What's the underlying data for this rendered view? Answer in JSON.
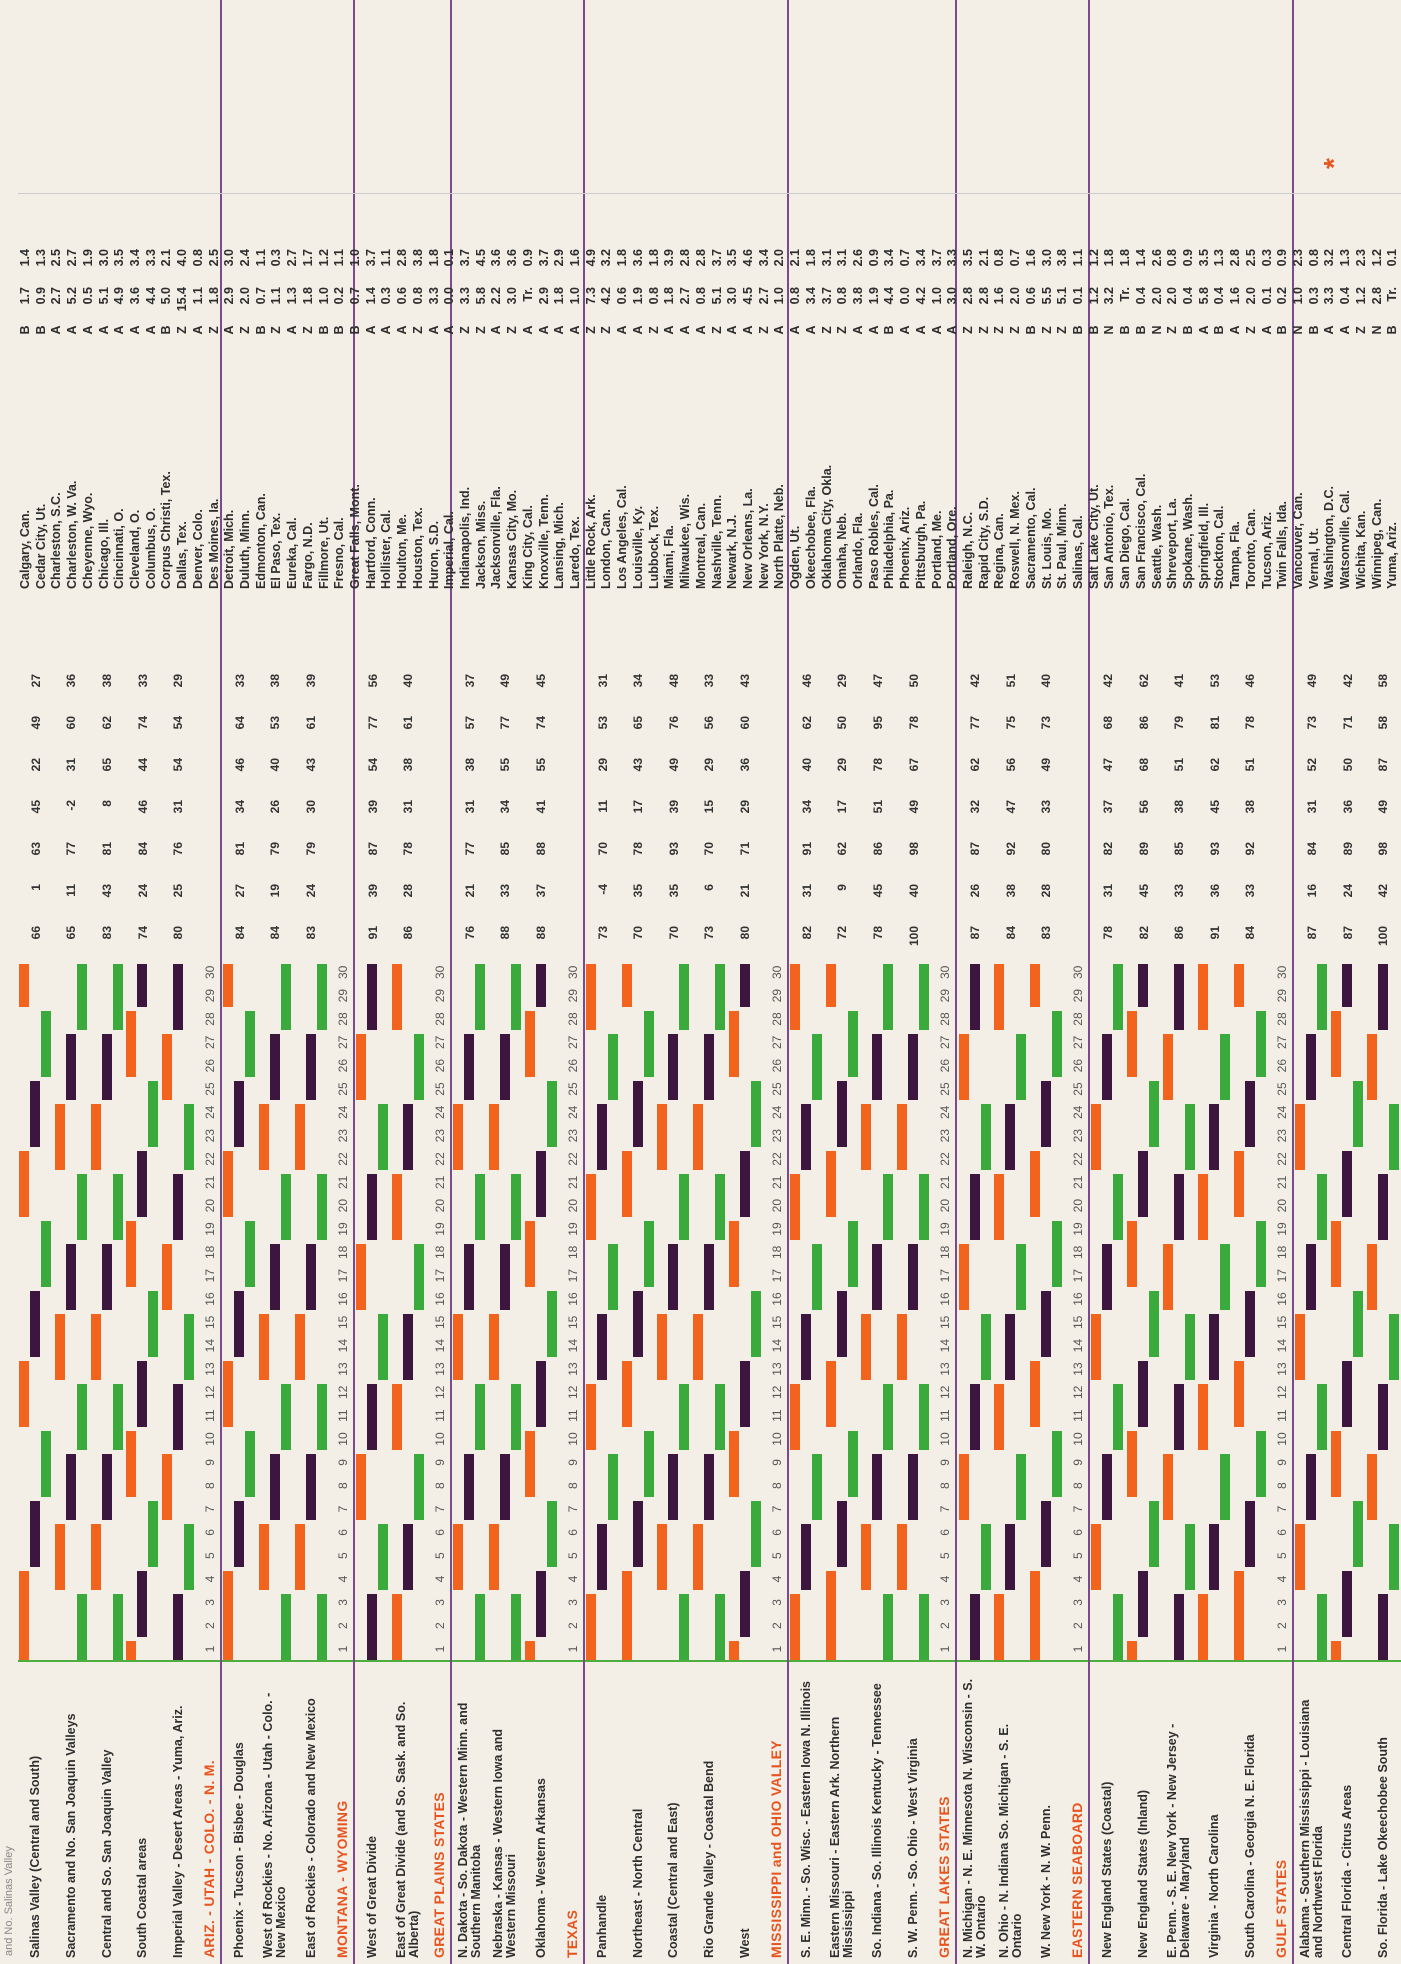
{
  "header_text": "and No. Salinas Valley",
  "colors": {
    "orange": "#f2641e",
    "purple": "#3d1640",
    "green": "#3aaa3c",
    "section": "#e8541f"
  },
  "day_numbers": [
    "1",
    "2",
    "3",
    "4",
    "5",
    "6",
    "7",
    "8",
    "9",
    "10",
    "11",
    "12",
    "13",
    "14",
    "15",
    "16",
    "17",
    "18",
    "19",
    "20",
    "21",
    "22",
    "23",
    "24",
    "25",
    "26",
    "27",
    "28",
    "29",
    "30"
  ],
  "rows": [
    {
      "kind": "region",
      "label": "Salinas Valley (Central and South)",
      "stats": [
        "66",
        "1",
        "63",
        "45",
        "22",
        "49",
        "27"
      ]
    },
    {
      "kind": "region",
      "label": "Sacramento and No. San Joaquin Valleys",
      "stats": [
        "65",
        "11",
        "77",
        "-2",
        "31",
        "60",
        "36"
      ]
    },
    {
      "kind": "region",
      "label": "Central and So. San Joaquin Valley",
      "stats": [
        "83",
        "43",
        "81",
        "8",
        "65",
        "62",
        "38"
      ]
    },
    {
      "kind": "region",
      "label": "South Coastal areas",
      "stats": [
        "74",
        "24",
        "84",
        "46",
        "44",
        "74",
        "33"
      ]
    },
    {
      "kind": "region",
      "label": "Imperial Valley - Desert Areas - Yuma, Ariz.",
      "stats": [
        "80",
        "25",
        "76",
        "31",
        "54",
        "54",
        "29"
      ]
    },
    {
      "kind": "section",
      "label": "ARIZ. - UTAH - COLO. - N. M."
    },
    {
      "kind": "region",
      "label": "Phoenix - Tucson - Bisbee - Douglas",
      "stats": [
        "84",
        "27",
        "81",
        "34",
        "46",
        "64",
        "33"
      ]
    },
    {
      "kind": "region",
      "label": "West of Rockies - No. Arizona - Utah - Colo. - New Mexico",
      "stats": [
        "84",
        "19",
        "79",
        "26",
        "40",
        "53",
        "38"
      ]
    },
    {
      "kind": "region",
      "label": "East of Rockies - Colorado and New Mexico",
      "stats": [
        "83",
        "24",
        "79",
        "30",
        "43",
        "61",
        "39"
      ]
    },
    {
      "kind": "section",
      "label": "MONTANA - WYOMING"
    },
    {
      "kind": "region",
      "label": "West of Great Divide",
      "stats": [
        "91",
        "39",
        "87",
        "39",
        "54",
        "77",
        "56"
      ]
    },
    {
      "kind": "region",
      "label": "East of Great Divide (and So. Sask. and So. Alberta)",
      "stats": [
        "86",
        "28",
        "78",
        "31",
        "38",
        "61",
        "40"
      ]
    },
    {
      "kind": "section",
      "label": "GREAT PLAINS STATES"
    },
    {
      "kind": "region",
      "label": "N. Dakota - So. Dakota - Western Minn. and Southern Manitoba",
      "stats": [
        "76",
        "21",
        "77",
        "31",
        "38",
        "57",
        "37"
      ]
    },
    {
      "kind": "region",
      "label": "Nebraska - Kansas - Western Iowa and Western Missouri",
      "stats": [
        "88",
        "33",
        "85",
        "34",
        "55",
        "77",
        "49"
      ]
    },
    {
      "kind": "region",
      "label": "Oklahoma - Western Arkansas",
      "stats": [
        "88",
        "37",
        "88",
        "41",
        "55",
        "74",
        "45"
      ]
    },
    {
      "kind": "section",
      "label": "TEXAS"
    },
    {
      "kind": "region",
      "label": "Panhandle",
      "stats": [
        "73",
        "-4",
        "70",
        "11",
        "29",
        "53",
        "31"
      ]
    },
    {
      "kind": "region",
      "label": "Northeast - North Central",
      "stats": [
        "70",
        "35",
        "78",
        "17",
        "43",
        "65",
        "34"
      ]
    },
    {
      "kind": "region",
      "label": "Coastal (Central and East)",
      "stats": [
        "70",
        "35",
        "93",
        "39",
        "49",
        "76",
        "48"
      ]
    },
    {
      "kind": "region",
      "label": "Rio Grande Valley - Coastal Bend",
      "stats": [
        "73",
        "6",
        "70",
        "15",
        "29",
        "56",
        "33"
      ]
    },
    {
      "kind": "region",
      "label": "West",
      "stats": [
        "80",
        "21",
        "71",
        "29",
        "36",
        "60",
        "43"
      ]
    },
    {
      "kind": "section",
      "label": "MISSISSIPPI and OHIO VALLEY"
    },
    {
      "kind": "region",
      "label": "S. E. Minn. - So. Wisc. - Eastern Iowa N. Illinois",
      "stats": [
        "82",
        "31",
        "91",
        "34",
        "40",
        "62",
        "46"
      ]
    },
    {
      "kind": "region",
      "label": "Eastern Missouri - Eastern Ark. Northern Mississippi",
      "stats": [
        "72",
        "9",
        "62",
        "17",
        "29",
        "50",
        "29"
      ]
    },
    {
      "kind": "region",
      "label": "So. Indiana - So. Illinois Kentucky - Tennessee",
      "stats": [
        "78",
        "45",
        "86",
        "51",
        "78",
        "95",
        "47"
      ]
    },
    {
      "kind": "region",
      "label": "S. W. Penn. - So. Ohio - West Virginia",
      "stats": [
        "100",
        "40",
        "98",
        "49",
        "67",
        "78",
        "50"
      ]
    },
    {
      "kind": "section",
      "label": "GREAT LAKES STATES"
    },
    {
      "kind": "region",
      "label": "N. Michigan - N. E. Minnesota N. Wisconsin - S. W. Ontario",
      "stats": [
        "87",
        "26",
        "87",
        "32",
        "62",
        "77",
        "42"
      ]
    },
    {
      "kind": "region",
      "label": "N. Ohio - N. Indiana So. Michigan - S. E. Ontario",
      "stats": [
        "84",
        "38",
        "92",
        "47",
        "56",
        "75",
        "51"
      ]
    },
    {
      "kind": "region",
      "label": "W. New York - N. W. Penn.",
      "stats": [
        "83",
        "28",
        "80",
        "33",
        "49",
        "73",
        "40"
      ]
    },
    {
      "kind": "section",
      "label": "EASTERN SEABOARD"
    },
    {
      "kind": "region",
      "label": "New England States (Coastal)",
      "stats": [
        "78",
        "31",
        "82",
        "37",
        "47",
        "68",
        "42"
      ]
    },
    {
      "kind": "region",
      "label": "New England States (Inland)",
      "stats": [
        "82",
        "45",
        "89",
        "56",
        "68",
        "86",
        "62"
      ]
    },
    {
      "kind": "region",
      "label": "E. Penn. - S. E. New York - New Jersey - Delaware - Maryland",
      "stats": [
        "86",
        "33",
        "85",
        "38",
        "51",
        "79",
        "41"
      ]
    },
    {
      "kind": "region",
      "label": "Virginia - North Carolina",
      "stats": [
        "91",
        "36",
        "93",
        "45",
        "62",
        "81",
        "53"
      ]
    },
    {
      "kind": "region",
      "label": "South Carolina - Georgia N. E. Florida",
      "stats": [
        "84",
        "33",
        "92",
        "38",
        "51",
        "78",
        "46"
      ]
    },
    {
      "kind": "section",
      "label": "GULF STATES"
    },
    {
      "kind": "region",
      "label": "Alabama - Southern Mississippi - Louisiana and Northwest Florida",
      "stats": [
        "87",
        "16",
        "84",
        "31",
        "52",
        "73",
        "49"
      ]
    },
    {
      "kind": "region",
      "label": "Central Florida - Citrus Areas",
      "stats": [
        "87",
        "24",
        "89",
        "36",
        "50",
        "71",
        "42"
      ]
    },
    {
      "kind": "region",
      "label": "So. Florida - Lake Okeechobee South",
      "stats": [
        "100",
        "42",
        "98",
        "49",
        "87",
        "58",
        "58"
      ]
    }
  ],
  "cities": [
    {
      "name": "Calgary, Can.",
      "code": "B",
      "a": "1.7",
      "b": "1.4"
    },
    {
      "name": "Cedar City, Ut.",
      "code": "B",
      "a": "0.9",
      "b": "1.3"
    },
    {
      "name": "Charleston, S.C.",
      "code": "A",
      "a": "2.7",
      "b": "2.5"
    },
    {
      "name": "Charleston, W. Va.",
      "code": "A",
      "a": "5.2",
      "b": "2.7"
    },
    {
      "name": "Cheyenne, Wyo.",
      "code": "A",
      "a": "0.5",
      "b": "1.9"
    },
    {
      "name": "Chicago, Ill.",
      "code": "A",
      "a": "5.1",
      "b": "3.0"
    },
    {
      "name": "Cincinnati, O.",
      "code": "A",
      "a": "4.9",
      "b": "3.5"
    },
    {
      "name": "Cleveland, O.",
      "code": "A",
      "a": "3.6",
      "b": "3.4"
    },
    {
      "name": "Columbus, O.",
      "code": "A",
      "a": "4.4",
      "b": "3.3"
    },
    {
      "name": "Corpus Christi, Tex.",
      "code": "B",
      "a": "5.0",
      "b": "2.1"
    },
    {
      "name": "Dallas, Tex.",
      "code": "Z",
      "a": "15.4",
      "b": "4.0"
    },
    {
      "name": "Denver, Colo.",
      "code": "A",
      "a": "1.1",
      "b": "0.8"
    },
    {
      "name": "Des Moines, Ia.",
      "code": "Z",
      "a": "1.8",
      "b": "2.5"
    },
    {
      "name": "Detroit, Mich.",
      "code": "A",
      "a": "2.9",
      "b": "3.0"
    },
    {
      "name": "Duluth, Minn.",
      "code": "Z",
      "a": "2.0",
      "b": "2.4"
    },
    {
      "name": "Edmonton, Can.",
      "code": "B",
      "a": "0.7",
      "b": "1.1"
    },
    {
      "name": "El Paso, Tex.",
      "code": "Z",
      "a": "1.1",
      "b": "0.3"
    },
    {
      "name": "Eureka, Cal.",
      "code": "A",
      "a": "1.3",
      "b": "2.7"
    },
    {
      "name": "Fargo, N.D.",
      "code": "Z",
      "a": "1.8",
      "b": "1.7"
    },
    {
      "name": "Fillmore, Ut.",
      "code": "B",
      "a": "1.0",
      "b": "1.2"
    },
    {
      "name": "Fresno, Cal.",
      "code": "B",
      "a": "0.2",
      "b": "1.1"
    },
    {
      "name": "Great Falls, Mont.",
      "code": "B",
      "a": "0.7",
      "b": "1.0"
    },
    {
      "name": "Hartford, Conn.",
      "code": "A",
      "a": "1.4",
      "b": "3.7"
    },
    {
      "name": "Hollister, Cal.",
      "code": "A",
      "a": "0.3",
      "b": "1.1"
    },
    {
      "name": "Houlton, Me.",
      "code": "A",
      "a": "0.6",
      "b": "2.8"
    },
    {
      "name": "Houston, Tex.",
      "code": "Z",
      "a": "0.8",
      "b": "3.8"
    },
    {
      "name": "Huron, S.D.",
      "code": "A",
      "a": "3.3",
      "b": "1.8"
    },
    {
      "name": "Imperial, Cal.",
      "code": "A",
      "a": "0.0",
      "b": "0.1"
    },
    {
      "name": "Indianapolis, Ind.",
      "code": "Z",
      "a": "3.3",
      "b": "3.7"
    },
    {
      "name": "Jackson, Miss.",
      "code": "Z",
      "a": "5.8",
      "b": "4.5"
    },
    {
      "name": "Jacksonville, Fla.",
      "code": "A",
      "a": "2.2",
      "b": "3.6"
    },
    {
      "name": "Kansas City, Mo.",
      "code": "Z",
      "a": "3.0",
      "b": "3.6"
    },
    {
      "name": "King City, Cal.",
      "code": "A",
      "a": "Tr.",
      "b": "0.9"
    },
    {
      "name": "Knoxville, Tenn.",
      "code": "A",
      "a": "2.9",
      "b": "3.7"
    },
    {
      "name": "Lansing, Mich.",
      "code": "A",
      "a": "1.8",
      "b": "2.9"
    },
    {
      "name": "Laredo, Tex.",
      "code": "A",
      "a": "1.0",
      "b": "1.6"
    },
    {
      "name": "Little Rock, Ark.",
      "code": "Z",
      "a": "7.3",
      "b": "4.9"
    },
    {
      "name": "London, Can.",
      "code": "Z",
      "a": "4.2",
      "b": "3.2"
    },
    {
      "name": "Los Angeles, Cal.",
      "code": "A",
      "a": "0.6",
      "b": "1.8"
    },
    {
      "name": "Louisville, Ky.",
      "code": "A",
      "a": "1.9",
      "b": "3.6"
    },
    {
      "name": "Lubbock, Tex.",
      "code": "Z",
      "a": "0.8",
      "b": "1.8"
    },
    {
      "name": "Miami, Fla.",
      "code": "A",
      "a": "1.8",
      "b": "3.9"
    },
    {
      "name": "Milwaukee, Wis.",
      "code": "A",
      "a": "2.7",
      "b": "2.8"
    },
    {
      "name": "Montreal, Can.",
      "code": "A",
      "a": "0.8",
      "b": "2.8"
    },
    {
      "name": "Nashville, Tenn.",
      "code": "Z",
      "a": "5.1",
      "b": "3.7"
    },
    {
      "name": "Newark, N.J.",
      "code": "A",
      "a": "3.0",
      "b": "3.5"
    },
    {
      "name": "New Orleans, La.",
      "code": "A",
      "a": "4.5",
      "b": "4.6"
    },
    {
      "name": "New York, N.Y.",
      "code": "Z",
      "a": "2.7",
      "b": "3.4"
    },
    {
      "name": "North Platte, Neb.",
      "code": "A",
      "a": "1.0",
      "b": "2.0"
    },
    {
      "name": "Ogden, Ut.",
      "code": "A",
      "a": "0.8",
      "b": "2.1"
    },
    {
      "name": "Okeechobee, Fla.",
      "code": "A",
      "a": "3.4",
      "b": "1.8"
    },
    {
      "name": "Oklahoma City, Okla.",
      "code": "Z",
      "a": "3.7",
      "b": "3.1"
    },
    {
      "name": "Omaha, Neb.",
      "code": "Z",
      "a": "0.8",
      "b": "3.1"
    },
    {
      "name": "Orlando, Fla.",
      "code": "A",
      "a": "3.8",
      "b": "2.6"
    },
    {
      "name": "Paso Robles, Cal.",
      "code": "A",
      "a": "1.9",
      "b": "0.9"
    },
    {
      "name": "Philadelphia, Pa.",
      "code": "B",
      "a": "4.4",
      "b": "3.4"
    },
    {
      "name": "Phoenix, Ariz.",
      "code": "A",
      "a": "0.0",
      "b": "0.7"
    },
    {
      "name": "Pittsburgh, Pa.",
      "code": "A",
      "a": "4.2",
      "b": "3.4"
    },
    {
      "name": "Portland, Me.",
      "code": "A",
      "a": "1.0",
      "b": "3.7"
    },
    {
      "name": "Portland, Ore.",
      "code": "A",
      "a": "3.0",
      "b": "3.3"
    },
    {
      "name": "Raleigh, N.C.",
      "code": "Z",
      "a": "2.8",
      "b": "3.5"
    },
    {
      "name": "Rapid City, S.D.",
      "code": "Z",
      "a": "2.8",
      "b": "2.1"
    },
    {
      "name": "Regina, Can.",
      "code": "Z",
      "a": "1.6",
      "b": "0.8"
    },
    {
      "name": "Roswell, N. Mex.",
      "code": "Z",
      "a": "2.0",
      "b": "0.7"
    },
    {
      "name": "Sacramento, Cal.",
      "code": "B",
      "a": "0.6",
      "b": "1.6"
    },
    {
      "name": "St. Louis, Mo.",
      "code": "Z",
      "a": "5.5",
      "b": "3.0"
    },
    {
      "name": "St. Paul, Minn.",
      "code": "Z",
      "a": "5.1",
      "b": "3.8"
    },
    {
      "name": "Salinas, Cal.",
      "code": "B",
      "a": "0.1",
      "b": "1.1"
    },
    {
      "name": "Salt Lake City, Ut.",
      "code": "B",
      "a": "1.2",
      "b": "1.2"
    },
    {
      "name": "San Antonio, Tex.",
      "code": "N",
      "a": "3.2",
      "b": "1.8"
    },
    {
      "name": "San Diego, Cal.",
      "code": "B",
      "a": "Tr.",
      "b": "1.8"
    },
    {
      "name": "San Francisco, Cal.",
      "code": "B",
      "a": "0.4",
      "b": "1.4"
    },
    {
      "name": "Seattle, Wash.",
      "code": "N",
      "a": "2.0",
      "b": "2.6"
    },
    {
      "name": "Shreveport, La.",
      "code": "Z",
      "a": "2.0",
      "b": "0.8"
    },
    {
      "name": "Spokane, Wash.",
      "code": "B",
      "a": "0.4",
      "b": "0.9"
    },
    {
      "name": "Springfield, Ill.",
      "code": "A",
      "a": "5.8",
      "b": "3.5"
    },
    {
      "name": "Stockton, Cal.",
      "code": "B",
      "a": "0.4",
      "b": "1.3"
    },
    {
      "name": "Tampa, Fla.",
      "code": "A",
      "a": "1.6",
      "b": "2.8"
    },
    {
      "name": "Toronto, Can.",
      "code": "Z",
      "a": "2.0",
      "b": "2.5"
    },
    {
      "name": "Tucson, Ariz.",
      "code": "A",
      "a": "0.1",
      "b": "0.3"
    },
    {
      "name": "Twin Falls, Ida.",
      "code": "B",
      "a": "0.2",
      "b": "0.9"
    },
    {
      "name": "Vancouver, Can.",
      "code": "N",
      "a": "1.0",
      "b": "2.3"
    },
    {
      "name": "Vernal, Ut.",
      "code": "B",
      "a": "0.3",
      "b": "0.8"
    },
    {
      "name": "Washington, D.C.",
      "code": "A",
      "a": "3.3",
      "b": "3.2"
    },
    {
      "name": "Watsonville, Cal.",
      "code": "A",
      "a": "0.4",
      "b": "1.3"
    },
    {
      "name": "Wichita, Kan.",
      "code": "Z",
      "a": "1.2",
      "b": "2.3"
    },
    {
      "name": "Winnipeg, Can.",
      "code": "N",
      "a": "2.8",
      "b": "1.2"
    },
    {
      "name": "Yuma, Ariz.",
      "code": "B",
      "a": "Tr.",
      "b": "0.1"
    }
  ],
  "bar_pattern_note": "",
  "legend_star": "*"
}
